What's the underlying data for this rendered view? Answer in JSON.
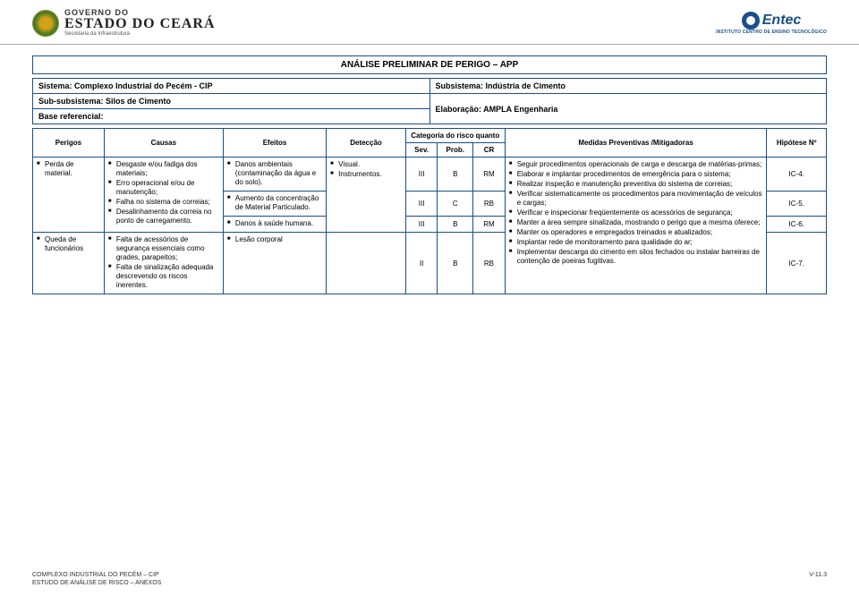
{
  "header": {
    "gov_line1": "GOVERNO DO",
    "gov_line2": "ESTADO DO CEARÁ",
    "gov_line3": "Secretaria da Infraestrutura",
    "entec_name": "Entec",
    "entec_sub": "INSTITUTO CENTRO DE ENSINO TECNOLÓGICO"
  },
  "title": "ANÁLISE PRELIMINAR DE PERIGO – APP",
  "meta": {
    "sistema_label": "Sistema: Complexo Industrial do Pecém - CIP",
    "subsistema_label": "Subsistema: Indústria de Cimento",
    "subsub_label": "Sub-subsistema: Silos de Cimento",
    "base_label": "Base referencial:",
    "elab_label": "Elaboração: AMPLA Engenharia"
  },
  "columns": {
    "perigos": "Perigos",
    "causas": "Causas",
    "efeitos": "Efeitos",
    "deteccao": "Detecção",
    "categoria": "Categoria do risco quanto",
    "sev": "Sev.",
    "prob": "Prob.",
    "cr": "CR",
    "medidas": "Medidas Preventivas /Mitigadoras",
    "hipotese": "Hipótese Nº"
  },
  "row1": {
    "perigo": "Perda de material.",
    "causas": [
      "Desgaste e/ou fadiga dos materiais;",
      "Erro operacional e/ou de manutenção;",
      "Falha no sistema de correias;",
      "Desalinhamento da correia no ponto de carregamento."
    ],
    "efeito1": "Danos ambientais (contaminação da água e do solo).",
    "efeito2": "Aumento da concentração de Material Particulado.",
    "efeito3": "Danos à saúde humana.",
    "detec": [
      "Visual.",
      "Instrumentos."
    ],
    "r1": {
      "sev": "III",
      "prob": "B",
      "cr": "RM",
      "hip": "IC-4."
    },
    "r2": {
      "sev": "III",
      "prob": "C",
      "cr": "RB",
      "hip": "IC-5."
    },
    "r3": {
      "sev": "III",
      "prob": "B",
      "cr": "RM",
      "hip": "IC-6."
    }
  },
  "row2": {
    "perigo": "Queda de funcionários",
    "causas": [
      "Falta de acessórios de segurança essenciais como grades, parapeitos;",
      "Falta de sinalização adequada descrevendo os riscos inerentes."
    ],
    "efeito": "Lesão corporal",
    "r": {
      "sev": "II",
      "prob": "B",
      "cr": "RB",
      "hip": "IC-7."
    }
  },
  "medidas": [
    "Seguir procedimentos operacionais de carga e descarga de matérias-primas;",
    "Elaborar e implantar procedimentos de emergência para o sistema;",
    "Realizar inspeção e manutenção preventiva do sistema de correias;",
    "Verificar sistematicamente os procedimentos para movimentação de veículos e cargas;",
    "Verificar e inspecionar freqüentemente os acessórios de segurança;",
    "Manter a área sempre sinalizada, mostrando o perigo que a mesma oferece;",
    "Manter os operadores e empregados treinados e atualizados;",
    "Implantar rede de monitoramento para qualidade do ar;",
    "Implementar descarga do cimento em silos fechados ou instalar barreiras de contenção de poeiras fugitivas."
  ],
  "footer": {
    "line1": "COMPLEXO INDUSTRIAL DO PECÉM – CIP",
    "line2": "ESTUDO DE ANÁLISE DE RISCO – ANEXOS",
    "page": "V-11.3"
  }
}
